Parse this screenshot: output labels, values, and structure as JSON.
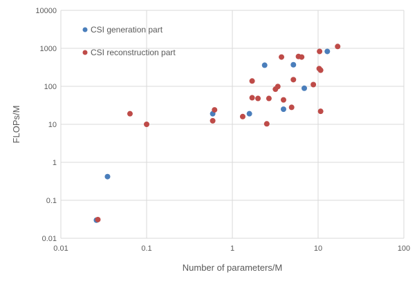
{
  "chart_data": {
    "type": "scatter",
    "title": "",
    "xlabel": "Number of parameters/M",
    "ylabel": "FLOPs/M",
    "xscale": "log",
    "yscale": "log",
    "xlim": [
      0.01,
      100
    ],
    "ylim": [
      0.01,
      10000
    ],
    "xticks": [
      "0.01",
      "0.1",
      "1",
      "10",
      "100"
    ],
    "yticks": [
      "0.01",
      "0.1",
      "1",
      "10",
      "100",
      "1000",
      "10000"
    ],
    "grid": true,
    "legend_position": "top-left",
    "series": [
      {
        "name": "CSI generation part",
        "color": "#4a7ebb",
        "points": [
          [
            0.026,
            0.03
          ],
          [
            0.035,
            0.42
          ],
          [
            0.59,
            19
          ],
          [
            1.58,
            19
          ],
          [
            2.38,
            360
          ],
          [
            3.95,
            25
          ],
          [
            5.15,
            370
          ],
          [
            6.9,
            89
          ],
          [
            12.8,
            830
          ]
        ]
      },
      {
        "name": "CSI reconstruction part",
        "color": "#be4b48",
        "points": [
          [
            0.027,
            0.031
          ],
          [
            0.064,
            19
          ],
          [
            0.1,
            10
          ],
          [
            0.59,
            12.4
          ],
          [
            0.62,
            24
          ],
          [
            1.32,
            16
          ],
          [
            1.7,
            138
          ],
          [
            1.7,
            50
          ],
          [
            1.99,
            48
          ],
          [
            2.52,
            10.3
          ],
          [
            2.67,
            48
          ],
          [
            3.18,
            84
          ],
          [
            3.39,
            99
          ],
          [
            3.74,
            590
          ],
          [
            3.95,
            44
          ],
          [
            4.91,
            28
          ],
          [
            5.15,
            150
          ],
          [
            5.9,
            610
          ],
          [
            6.43,
            590
          ],
          [
            8.8,
            111
          ],
          [
            10.3,
            293
          ],
          [
            10.4,
            830
          ],
          [
            10.7,
            266
          ],
          [
            10.7,
            22
          ],
          [
            16.9,
            1120
          ]
        ]
      }
    ]
  }
}
